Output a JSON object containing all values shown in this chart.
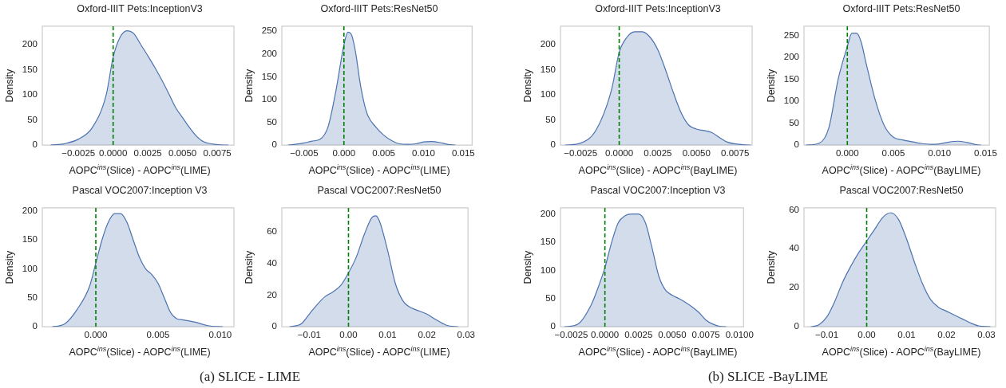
{
  "chart_data": [
    {
      "type": "area",
      "title": "Oxford-IIIT Pets:InceptionV3",
      "xlabel": "AOPC$^{ins}$(Slice) - AOPC$^{ins}$(LIME)",
      "ylabel": "Density",
      "color": "#4c72b0",
      "grid": false,
      "x": [
        -0.0045,
        -0.0035,
        -0.0025,
        -0.0015,
        -0.0005,
        0,
        0.0005,
        0.001,
        0.0015,
        0.002,
        0.0025,
        0.003,
        0.0035,
        0.004,
        0.0045,
        0.005,
        0.0055,
        0.006,
        0.0065,
        0.0075,
        0.0083
      ],
      "values": [
        0,
        3,
        12,
        35,
        100,
        175,
        215,
        228,
        222,
        200,
        178,
        155,
        130,
        103,
        75,
        55,
        35,
        18,
        7,
        1,
        0
      ],
      "xlim": [
        -0.0051,
        0.0087
      ],
      "xticks": [
        {
          "value": -0.0025,
          "label": "−0.0025"
        },
        {
          "value": 0,
          "label": "0.0000"
        },
        {
          "value": 0.0025,
          "label": "0.0025"
        },
        {
          "value": 0.005,
          "label": "0.0050"
        },
        {
          "value": 0.0075,
          "label": "0.0075"
        }
      ],
      "ylim": [
        0,
        237
      ],
      "yticks": [
        0,
        50,
        100,
        150,
        200
      ],
      "ref_lines": [
        {
          "axis": "x",
          "value": 0,
          "color": "#008000",
          "line_style": "dashed"
        }
      ]
    },
    {
      "type": "area",
      "title": "Oxford-IIIT Pets:ResNet50",
      "xlabel": "AOPC$^{ins}$(Slice) - AOPC$^{ins}$(LIME)",
      "ylabel": "Density",
      "color": "#4c72b0",
      "grid": false,
      "x": [
        -0.007,
        -0.005,
        -0.004,
        -0.003,
        -0.002,
        -0.001,
        0,
        0.0005,
        0.001,
        0.0015,
        0.002,
        0.0025,
        0.003,
        0.004,
        0.005,
        0.006,
        0.007,
        0.008,
        0.009,
        0.01,
        0.011,
        0.012,
        0.013,
        0.014
      ],
      "values": [
        0,
        5,
        9,
        13,
        40,
        120,
        220,
        248,
        240,
        200,
        140,
        95,
        65,
        40,
        22,
        10,
        3,
        2,
        3,
        7,
        8,
        6,
        2,
        0
      ],
      "xlim": [
        -0.0078,
        0.0161
      ],
      "xticks": [
        {
          "value": -0.005,
          "label": "−0.005"
        },
        {
          "value": 0,
          "label": "0.000"
        },
        {
          "value": 0.005,
          "label": "0.005"
        },
        {
          "value": 0.01,
          "label": "0.010"
        },
        {
          "value": 0.015,
          "label": "0.015"
        }
      ],
      "ylim": [
        0,
        261
      ],
      "yticks": [
        0,
        50,
        100,
        150,
        200,
        250
      ],
      "ref_lines": [
        {
          "axis": "x",
          "value": 0,
          "color": "#008000",
          "line_style": "dashed"
        }
      ]
    },
    {
      "type": "area",
      "title": "Oxford-IIIT Pets:InceptionV3",
      "xlabel": "AOPC$^{ins}$(Slice) - AOPC$^{ins}$(BayLIME)",
      "ylabel": "Density",
      "color": "#4c72b0",
      "grid": false,
      "x": [
        -0.0035,
        -0.0025,
        -0.0015,
        -0.0005,
        0,
        0.0005,
        0.001,
        0.0015,
        0.002,
        0.0025,
        0.003,
        0.0035,
        0.004,
        0.0045,
        0.005,
        0.0055,
        0.006,
        0.0065,
        0.007,
        0.008,
        0.0085
      ],
      "values": [
        0,
        4,
        30,
        110,
        185,
        215,
        226,
        226,
        215,
        190,
        150,
        105,
        65,
        40,
        32,
        29,
        25,
        15,
        6,
        1,
        0
      ],
      "xlim": [
        -0.0038,
        0.0086
      ],
      "xticks": [
        {
          "value": -0.0025,
          "label": "−0.0025"
        },
        {
          "value": 0,
          "label": "0.0000"
        },
        {
          "value": 0.0025,
          "label": "0.0025"
        },
        {
          "value": 0.005,
          "label": "0.0050"
        },
        {
          "value": 0.0075,
          "label": "0.0075"
        }
      ],
      "ylim": [
        0,
        237
      ],
      "yticks": [
        0,
        50,
        100,
        150,
        200
      ],
      "ref_lines": [
        {
          "axis": "x",
          "value": 0,
          "color": "#008000",
          "line_style": "dashed"
        }
      ]
    },
    {
      "type": "area",
      "title": "Oxford-IIIT Pets:ResNet50",
      "xlabel": "AOPC$^{ins}$(Slice) - AOPC$^{ins}$(BayLIME)",
      "ylabel": "Density",
      "color": "#4c72b0",
      "grid": false,
      "x": [
        -0.0045,
        -0.003,
        -0.002,
        -0.001,
        0,
        0.0005,
        0.001,
        0.0015,
        0.002,
        0.003,
        0.004,
        0.005,
        0.006,
        0.007,
        0.008,
        0.009,
        0.01,
        0.011,
        0.012,
        0.013,
        0.014,
        0.0145
      ],
      "values": [
        0,
        5,
        40,
        150,
        225,
        255,
        255,
        235,
        190,
        105,
        45,
        18,
        12,
        8,
        4,
        2,
        3,
        7,
        9,
        6,
        1,
        0
      ],
      "xlim": [
        -0.0047,
        0.0154
      ],
      "xticks": [
        {
          "value": 0,
          "label": "0.000"
        },
        {
          "value": 0.005,
          "label": "0.005"
        },
        {
          "value": 0.01,
          "label": "0.010"
        },
        {
          "value": 0.015,
          "label": "0.015"
        }
      ],
      "ylim": [
        0,
        271
      ],
      "yticks": [
        0,
        50,
        100,
        150,
        200,
        250
      ],
      "ref_lines": [
        {
          "axis": "x",
          "value": 0,
          "color": "#008000",
          "line_style": "dashed"
        }
      ]
    },
    {
      "type": "area",
      "title": "Pascal VOC2007:Inception V3",
      "xlabel": "AOPC$^{ins}$(Slice) - AOPC$^{ins}$(LIME)",
      "ylabel": "Density",
      "color": "#4c72b0",
      "grid": false,
      "x": [
        -0.0035,
        -0.0025,
        -0.0015,
        -0.0005,
        0,
        0.0005,
        0.001,
        0.0015,
        0.002,
        0.0025,
        0.003,
        0.0035,
        0.004,
        0.0045,
        0.005,
        0.0055,
        0.006,
        0.0065,
        0.007,
        0.008,
        0.009,
        0.0102
      ],
      "values": [
        0,
        5,
        30,
        70,
        110,
        150,
        180,
        195,
        195,
        180,
        150,
        120,
        100,
        90,
        75,
        50,
        25,
        14,
        12,
        8,
        2,
        0
      ],
      "xlim": [
        -0.0043,
        0.0111
      ],
      "xticks": [
        {
          "value": 0,
          "label": "0.000"
        },
        {
          "value": 0.005,
          "label": "0.005"
        },
        {
          "value": 0.01,
          "label": "0.010"
        }
      ],
      "ylim": [
        0,
        205
      ],
      "yticks": [
        0,
        50,
        100,
        150,
        200
      ],
      "ref_lines": [
        {
          "axis": "x",
          "value": 0,
          "color": "#008000",
          "line_style": "dashed"
        }
      ],
      "annotations": [
        "(a) SLICE - LIME"
      ]
    },
    {
      "type": "area",
      "title": "Pascal VOC2007:ResNet50",
      "xlabel": "AOPC$^{ins}$(Slice) - AOPC$^{ins}$(LIME)",
      "ylabel": "Density",
      "color": "#4c72b0",
      "grid": false,
      "x": [
        -0.015,
        -0.012,
        -0.01,
        -0.008,
        -0.006,
        -0.004,
        -0.002,
        0,
        0.002,
        0.004,
        0.006,
        0.007,
        0.008,
        0.01,
        0.012,
        0.014,
        0.016,
        0.018,
        0.02,
        0.022,
        0.025,
        0.028
      ],
      "values": [
        0,
        2,
        8,
        14,
        19,
        22,
        26,
        34,
        44,
        58,
        69,
        70,
        66,
        48,
        27,
        16,
        12,
        10,
        8,
        5,
        1,
        0
      ],
      "xlim": [
        -0.017,
        0.0305
      ],
      "xticks": [
        {
          "value": -0.01,
          "label": "−0.01"
        },
        {
          "value": 0,
          "label": "0.00"
        },
        {
          "value": 0.01,
          "label": "0.01"
        },
        {
          "value": 0.02,
          "label": "0.02"
        },
        {
          "value": 0.03,
          "label": "0.03"
        }
      ],
      "ylim": [
        0,
        75
      ],
      "yticks": [
        0,
        20,
        40,
        60
      ],
      "ref_lines": [
        {
          "axis": "x",
          "value": 0,
          "color": "#008000",
          "line_style": "dashed"
        }
      ]
    },
    {
      "type": "area",
      "title": "Pascal VOC2007:Inception V3",
      "xlabel": "AOPC$^{ins}$(Slice) - AOPC$^{ins}$(BayLIME)",
      "ylabel": "Density",
      "color": "#4c72b0",
      "grid": false,
      "x": [
        -0.003,
        -0.002,
        -0.001,
        -0.0005,
        0,
        0.0005,
        0.001,
        0.0015,
        0.002,
        0.0025,
        0.003,
        0.0035,
        0.004,
        0.0045,
        0.005,
        0.0055,
        0.006,
        0.0065,
        0.007,
        0.0075,
        0.008,
        0.0085,
        0.009
      ],
      "values": [
        0,
        5,
        40,
        70,
        105,
        150,
        185,
        197,
        200,
        200,
        185,
        140,
        90,
        65,
        56,
        50,
        43,
        35,
        25,
        12,
        5,
        1,
        0
      ],
      "xlim": [
        -0.0033,
        0.0103
      ],
      "xticks": [
        {
          "value": -0.0025,
          "label": "−0.0025"
        },
        {
          "value": 0,
          "label": "0.0000"
        },
        {
          "value": 0.0025,
          "label": "0.0025"
        },
        {
          "value": 0.005,
          "label": "0.0050"
        },
        {
          "value": 0.0075,
          "label": "0.0075"
        },
        {
          "value": 0.01,
          "label": "0.0100"
        }
      ],
      "ylim": [
        0,
        211
      ],
      "yticks": [
        0,
        50,
        100,
        150,
        200
      ],
      "ref_lines": [
        {
          "axis": "x",
          "value": 0,
          "color": "#008000",
          "line_style": "dashed"
        }
      ],
      "annotations": [
        "(b) SLICE -BayLIME"
      ]
    },
    {
      "type": "area",
      "title": "Pascal VOC2007:ResNet50",
      "xlabel": "AOPC$^{ins}$(Slice) - AOPC$^{ins}$(BayLIME)",
      "ylabel": "Density",
      "color": "#4c72b0",
      "grid": false,
      "x": [
        -0.014,
        -0.012,
        -0.01,
        -0.008,
        -0.006,
        -0.004,
        -0.002,
        0,
        0.002,
        0.004,
        0.006,
        0.008,
        0.01,
        0.012,
        0.014,
        0.016,
        0.018,
        0.02,
        0.022,
        0.024,
        0.026,
        0.028,
        0.031
      ],
      "values": [
        0,
        1,
        5,
        13,
        23,
        31,
        38,
        44,
        50,
        56,
        58.5,
        55,
        45,
        33,
        22,
        14,
        10,
        8,
        6,
        4,
        2,
        0.5,
        0
      ],
      "xlim": [
        -0.0157,
        0.0323
      ],
      "xticks": [
        {
          "value": -0.01,
          "label": "−0.01"
        },
        {
          "value": 0,
          "label": "0.00"
        },
        {
          "value": 0.01,
          "label": "0.01"
        },
        {
          "value": 0.02,
          "label": "0.02"
        },
        {
          "value": 0.03,
          "label": "0.03"
        }
      ],
      "ylim": [
        0,
        61
      ],
      "yticks": [
        0,
        20,
        40,
        60
      ],
      "ref_lines": [
        {
          "axis": "x",
          "value": 0,
          "color": "#008000",
          "line_style": "dashed"
        }
      ]
    }
  ]
}
